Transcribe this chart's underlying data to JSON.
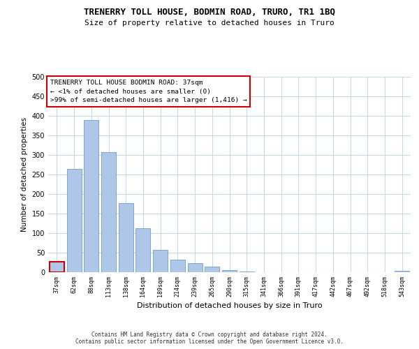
{
  "title": "TRENERRY TOLL HOUSE, BODMIN ROAD, TRURO, TR1 1BQ",
  "subtitle": "Size of property relative to detached houses in Truro",
  "xlabel": "Distribution of detached houses by size in Truro",
  "ylabel": "Number of detached properties",
  "categories": [
    "37sqm",
    "62sqm",
    "88sqm",
    "113sqm",
    "138sqm",
    "164sqm",
    "189sqm",
    "214sqm",
    "239sqm",
    "265sqm",
    "290sqm",
    "315sqm",
    "341sqm",
    "366sqm",
    "391sqm",
    "417sqm",
    "442sqm",
    "467sqm",
    "492sqm",
    "518sqm",
    "543sqm"
  ],
  "values": [
    27,
    265,
    390,
    308,
    176,
    113,
    58,
    32,
    23,
    14,
    6,
    1,
    0,
    0,
    0,
    0,
    0,
    0,
    0,
    0,
    3
  ],
  "bar_color": "#aec6e8",
  "bar_edge_color": "#5a8fc2",
  "highlight_index": 0,
  "highlight_bar_edge_color": "#cc0000",
  "ylim": [
    0,
    500
  ],
  "yticks": [
    0,
    50,
    100,
    150,
    200,
    250,
    300,
    350,
    400,
    450,
    500
  ],
  "annotation_lines": [
    "TRENERRY TOLL HOUSE BODMIN ROAD: 37sqm",
    "← <1% of detached houses are smaller (0)",
    ">99% of semi-detached houses are larger (1,416) →"
  ],
  "footer_line1": "Contains HM Land Registry data © Crown copyright and database right 2024.",
  "footer_line2": "Contains public sector information licensed under the Open Government Licence v3.0.",
  "bg_color": "#ffffff",
  "grid_color": "#c8d8e8",
  "title_fontsize": 9,
  "subtitle_fontsize": 8,
  "ylabel_fontsize": 7.5,
  "xlabel_fontsize": 8,
  "tick_fontsize": 7,
  "xtick_fontsize": 6,
  "annotation_fontsize": 6.8,
  "footer_fontsize": 5.5
}
